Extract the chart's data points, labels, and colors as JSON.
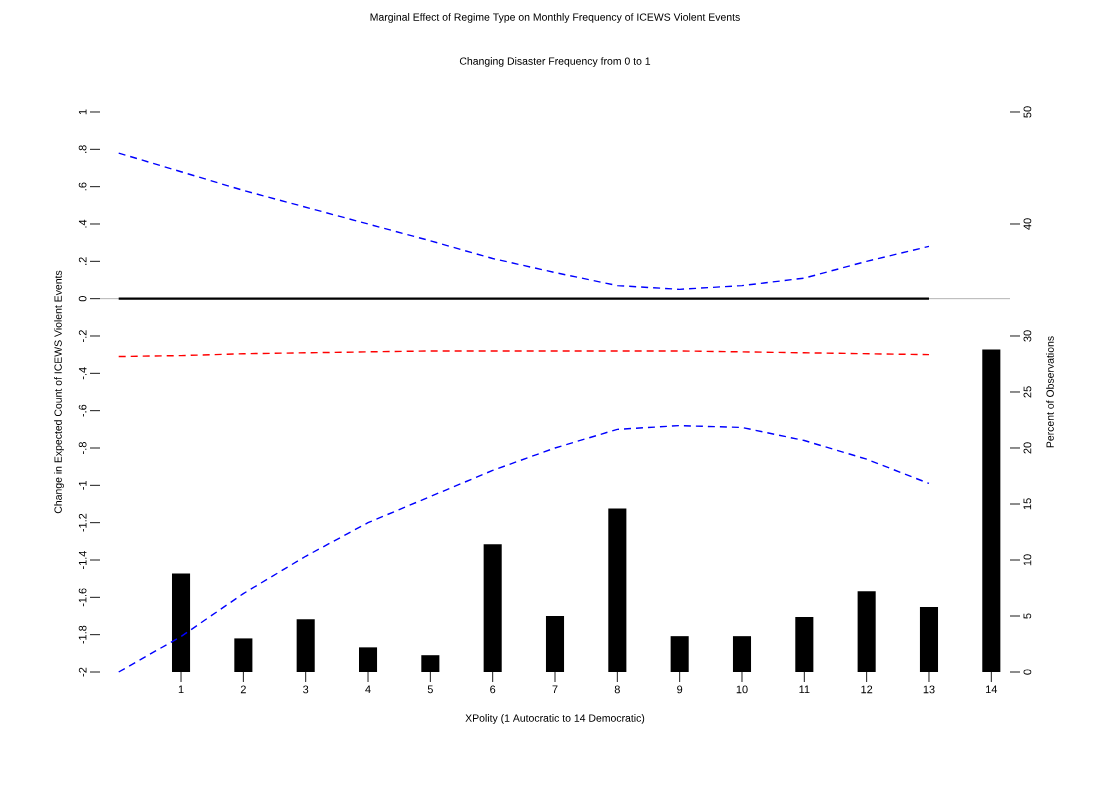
{
  "chart_data": {
    "type": "line",
    "title": "Marginal Effect of Regime Type on Monthly Frequency of ICEWS Violent Events",
    "subtitle": "Changing Disaster Frequency from 0 to 1",
    "xlabel": "XPolity (1 Autocratic to 14 Democratic)",
    "ylabel": "Change in Expected Count of ICEWS Violent Events",
    "y2label": "Percent of Observations",
    "xlim": [
      -0.3,
      14.3
    ],
    "xticks": [
      1,
      2,
      3,
      4,
      5,
      6,
      7,
      8,
      9,
      10,
      11,
      12,
      13,
      14
    ],
    "ylim": [
      -2,
      1
    ],
    "yticks": [
      -2,
      {
        "value": -1.8,
        "label": "-1.8"
      },
      {
        "value": -1.6,
        "label": "-1.6"
      },
      {
        "value": -1.4,
        "label": "-1.4"
      },
      {
        "value": -1.2,
        "label": "-1.2"
      },
      -1,
      {
        "value": -0.8,
        "label": "-.8"
      },
      {
        "value": -0.6,
        "label": "-.6"
      },
      {
        "value": -0.4,
        "label": "-.4"
      },
      {
        "value": -0.2,
        "label": "-.2"
      },
      0,
      {
        "value": 0.2,
        "label": ".2"
      },
      {
        "value": 0.4,
        "label": ".4"
      },
      {
        "value": 0.6,
        "label": ".6"
      },
      {
        "value": 0.8,
        "label": ".8"
      },
      1
    ],
    "y2lim": [
      0,
      50
    ],
    "y2ticks": [
      0,
      5,
      10,
      15,
      20,
      25,
      30,
      40,
      50
    ],
    "ref_lines": [
      {
        "axis": "y",
        "value": 0,
        "color": "#808080"
      }
    ],
    "series": [
      {
        "type": "bar",
        "axis": "y2",
        "color": "#000000",
        "x": [
          1,
          2,
          3,
          4,
          5,
          6,
          7,
          8,
          9,
          10,
          11,
          12,
          13,
          14
        ],
        "values": [
          8.8,
          3.0,
          4.7,
          2.2,
          1.5,
          11.4,
          5.0,
          14.6,
          3.2,
          3.2,
          4.9,
          7.2,
          5.8,
          28.8
        ]
      },
      {
        "color": "#000000",
        "line_style": "solid",
        "x": [
          0,
          1,
          2,
          3,
          4,
          5,
          6,
          7,
          8,
          9,
          10,
          11,
          12,
          13
        ],
        "values": [
          0,
          0,
          0,
          0,
          0,
          0,
          0,
          0,
          0,
          0,
          0,
          0,
          0,
          0
        ]
      },
      {
        "color": "#0000ff",
        "line_style": "dashed",
        "x": [
          0,
          1,
          2,
          3,
          4,
          5,
          6,
          7,
          8,
          9,
          10,
          11,
          12,
          13
        ],
        "values": [
          0.78,
          0.68,
          0.58,
          0.49,
          0.4,
          0.31,
          0.215,
          0.14,
          0.07,
          0.05,
          0.07,
          0.11,
          0.2,
          0.28
        ]
      },
      {
        "color": "#0000ff",
        "line_style": "dashed",
        "x": [
          0,
          1,
          2,
          3,
          4,
          5,
          6,
          7,
          8,
          9,
          10,
          11,
          12,
          13
        ],
        "values": [
          -2.0,
          -1.81,
          -1.58,
          -1.38,
          -1.2,
          -1.06,
          -0.92,
          -0.8,
          -0.7,
          -0.68,
          -0.69,
          -0.76,
          -0.86,
          -0.99
        ]
      },
      {
        "color": "#ff0000",
        "line_style": "dashed",
        "x": [
          0,
          1,
          2,
          3,
          4,
          5,
          6,
          7,
          8,
          9,
          10,
          11,
          12,
          13
        ],
        "values": [
          -0.31,
          -0.305,
          -0.295,
          -0.29,
          -0.285,
          -0.28,
          -0.28,
          -0.28,
          -0.28,
          -0.28,
          -0.285,
          -0.29,
          -0.295,
          -0.3
        ]
      }
    ]
  }
}
